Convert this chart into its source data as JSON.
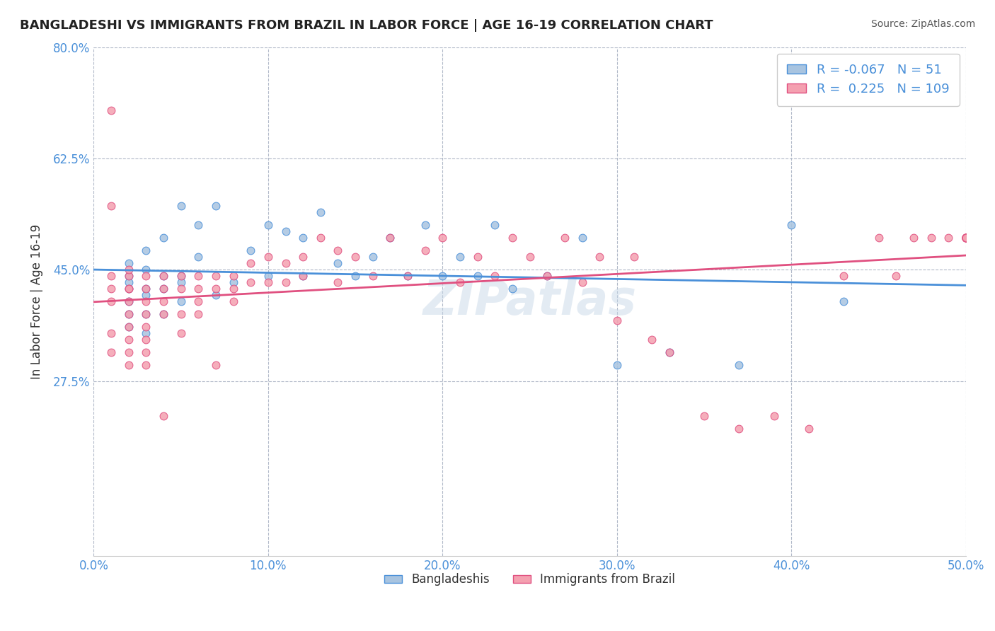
{
  "title": "BANGLADESHI VS IMMIGRANTS FROM BRAZIL IN LABOR FORCE | AGE 16-19 CORRELATION CHART",
  "source": "Source: ZipAtlas.com",
  "xlabel": "",
  "ylabel": "In Labor Force | Age 16-19",
  "xlim": [
    0.0,
    0.5
  ],
  "ylim": [
    0.0,
    0.8
  ],
  "xtick_labels": [
    "0.0%",
    "10.0%",
    "20.0%",
    "30.0%",
    "40.0%",
    "50.0%"
  ],
  "xtick_values": [
    0.0,
    0.1,
    0.2,
    0.3,
    0.4,
    0.5
  ],
  "ytick_labels": [
    "27.5%",
    "45.0%",
    "62.5%",
    "80.0%"
  ],
  "ytick_values": [
    0.275,
    0.45,
    0.625,
    0.8
  ],
  "legend_R_blue": "-0.067",
  "legend_N_blue": "51",
  "legend_R_pink": "0.225",
  "legend_N_pink": "109",
  "blue_color": "#a8c4e0",
  "pink_color": "#f4a0b0",
  "blue_line_color": "#4a90d9",
  "pink_line_color": "#e05080",
  "watermark": "ZIPatlas",
  "blue_scatter_x": [
    0.02,
    0.02,
    0.02,
    0.02,
    0.02,
    0.02,
    0.02,
    0.03,
    0.03,
    0.03,
    0.03,
    0.03,
    0.03,
    0.04,
    0.04,
    0.04,
    0.04,
    0.05,
    0.05,
    0.05,
    0.05,
    0.06,
    0.06,
    0.07,
    0.07,
    0.08,
    0.09,
    0.1,
    0.1,
    0.11,
    0.12,
    0.12,
    0.13,
    0.14,
    0.15,
    0.16,
    0.17,
    0.18,
    0.19,
    0.2,
    0.21,
    0.22,
    0.23,
    0.24,
    0.26,
    0.28,
    0.3,
    0.33,
    0.37,
    0.4,
    0.43
  ],
  "blue_scatter_y": [
    0.44,
    0.42,
    0.4,
    0.38,
    0.36,
    0.43,
    0.46,
    0.45,
    0.42,
    0.38,
    0.35,
    0.41,
    0.48,
    0.44,
    0.42,
    0.38,
    0.5,
    0.44,
    0.4,
    0.55,
    0.43,
    0.47,
    0.52,
    0.41,
    0.55,
    0.43,
    0.48,
    0.44,
    0.52,
    0.51,
    0.44,
    0.5,
    0.54,
    0.46,
    0.44,
    0.47,
    0.5,
    0.44,
    0.52,
    0.44,
    0.47,
    0.44,
    0.52,
    0.42,
    0.44,
    0.5,
    0.3,
    0.32,
    0.3,
    0.52,
    0.4
  ],
  "pink_scatter_x": [
    0.01,
    0.01,
    0.01,
    0.01,
    0.01,
    0.01,
    0.01,
    0.02,
    0.02,
    0.02,
    0.02,
    0.02,
    0.02,
    0.02,
    0.02,
    0.02,
    0.02,
    0.03,
    0.03,
    0.03,
    0.03,
    0.03,
    0.03,
    0.03,
    0.03,
    0.04,
    0.04,
    0.04,
    0.04,
    0.04,
    0.05,
    0.05,
    0.05,
    0.05,
    0.06,
    0.06,
    0.06,
    0.06,
    0.07,
    0.07,
    0.07,
    0.08,
    0.08,
    0.08,
    0.09,
    0.09,
    0.1,
    0.1,
    0.11,
    0.11,
    0.12,
    0.12,
    0.13,
    0.14,
    0.14,
    0.15,
    0.16,
    0.17,
    0.18,
    0.19,
    0.2,
    0.21,
    0.22,
    0.23,
    0.24,
    0.25,
    0.26,
    0.27,
    0.28,
    0.29,
    0.3,
    0.31,
    0.32,
    0.33,
    0.35,
    0.37,
    0.39,
    0.41,
    0.43,
    0.45,
    0.46,
    0.47,
    0.48,
    0.49,
    0.5,
    0.5,
    0.5,
    0.5,
    0.5,
    0.5,
    0.5,
    0.5,
    0.5,
    0.5,
    0.5,
    0.5,
    0.5,
    0.5,
    0.5,
    0.5,
    0.5,
    0.5,
    0.5,
    0.5,
    0.5
  ],
  "pink_scatter_y": [
    0.44,
    0.42,
    0.4,
    0.35,
    0.32,
    0.7,
    0.55,
    0.44,
    0.42,
    0.4,
    0.38,
    0.36,
    0.34,
    0.32,
    0.3,
    0.45,
    0.42,
    0.44,
    0.42,
    0.4,
    0.38,
    0.36,
    0.34,
    0.32,
    0.3,
    0.44,
    0.42,
    0.4,
    0.38,
    0.22,
    0.44,
    0.42,
    0.38,
    0.35,
    0.44,
    0.42,
    0.4,
    0.38,
    0.44,
    0.42,
    0.3,
    0.44,
    0.42,
    0.4,
    0.46,
    0.43,
    0.47,
    0.43,
    0.46,
    0.43,
    0.47,
    0.44,
    0.5,
    0.48,
    0.43,
    0.47,
    0.44,
    0.5,
    0.44,
    0.48,
    0.5,
    0.43,
    0.47,
    0.44,
    0.5,
    0.47,
    0.44,
    0.5,
    0.43,
    0.47,
    0.37,
    0.47,
    0.34,
    0.32,
    0.22,
    0.2,
    0.22,
    0.2,
    0.44,
    0.5,
    0.44,
    0.5,
    0.5,
    0.5,
    0.5,
    0.5,
    0.5,
    0.5,
    0.5,
    0.5,
    0.5,
    0.5,
    0.5,
    0.5,
    0.5,
    0.5,
    0.5,
    0.5,
    0.5,
    0.5,
    0.5,
    0.5,
    0.5,
    0.5,
    0.5
  ]
}
